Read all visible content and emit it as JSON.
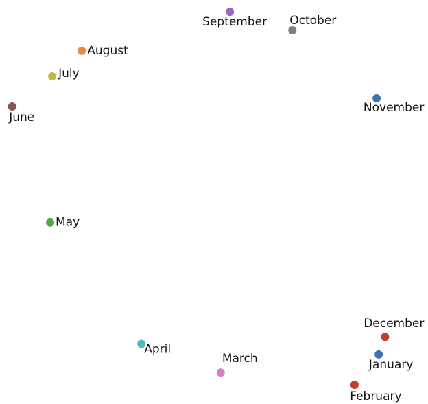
{
  "chart_data": {
    "type": "scatter",
    "labels": [
      "January",
      "February",
      "March",
      "April",
      "May",
      "June",
      "July",
      "August",
      "September",
      "October",
      "November",
      "December"
    ],
    "x": [
      89.5,
      83.7,
      51.6,
      32.6,
      10.7,
      1.6,
      11.2,
      18.3,
      53.8,
      68.8,
      89.0,
      91.0
    ],
    "y": [
      11.2,
      3.5,
      6.6,
      13.9,
      44.8,
      74.3,
      82.0,
      88.5,
      98.4,
      93.7,
      76.4,
      15.7
    ],
    "colors": [
      "#3a75b0",
      "#c83a36",
      "#d47fc2",
      "#4bbac8",
      "#57a345",
      "#875650",
      "#bcbd3f",
      "#ee8a3c",
      "#9669be",
      "#7f7f7f",
      "#3a75b0",
      "#c83a36"
    ],
    "xlim": [
      0,
      100
    ],
    "ylim": [
      0,
      100
    ]
  }
}
